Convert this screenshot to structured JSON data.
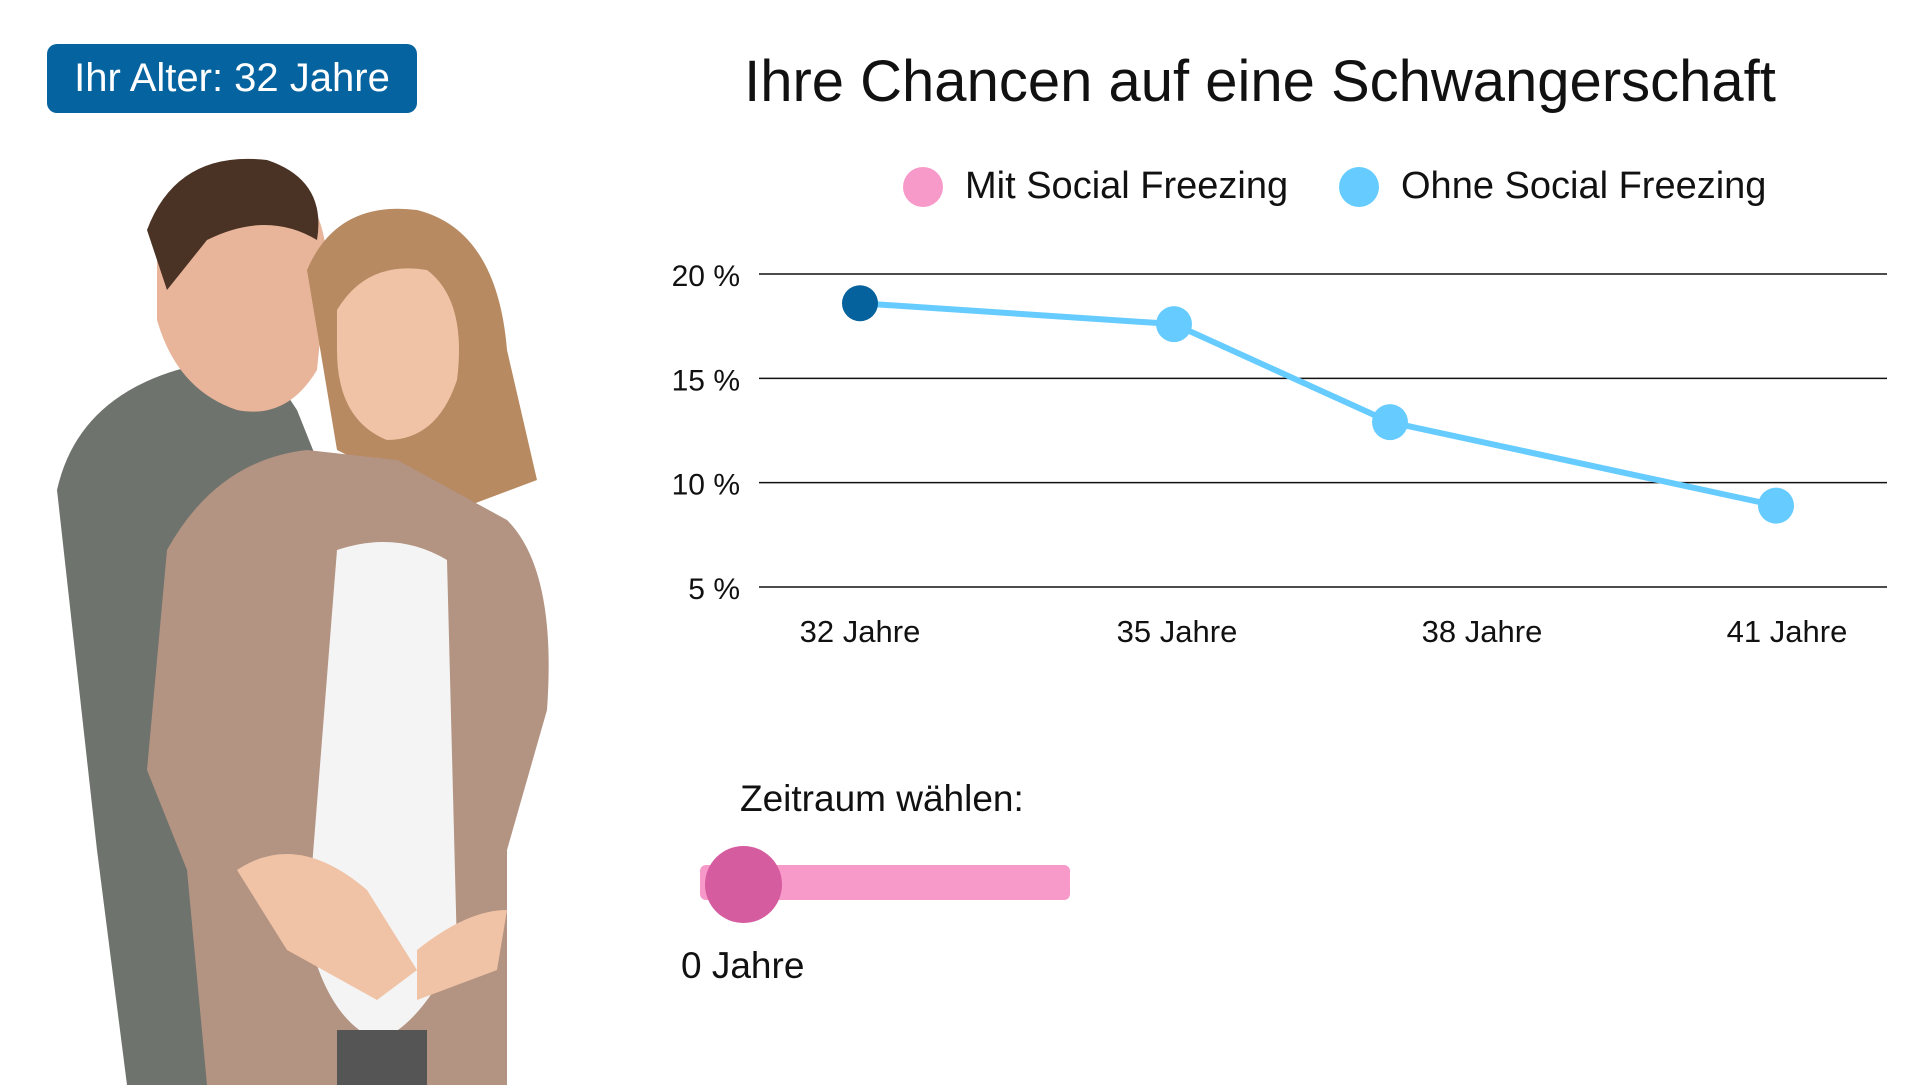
{
  "age_badge": "Ihr Alter: 32 Jahre",
  "title": "Ihre Chancen auf eine Schwangerschaft",
  "slider": {
    "label": "Zeitraum wählen:",
    "value_label": "0 Jahre",
    "value": 0
  },
  "colors": {
    "brand": "#0564a0",
    "mit": "#f799c9",
    "ohne": "#66ccff",
    "current": "#05629c",
    "knob": "#d65ca0"
  },
  "chart_data": {
    "type": "line",
    "title": "Ihre Chancen auf eine Schwangerschaft",
    "legend": [
      {
        "name": "Mit Social Freezing",
        "color": "#f799c9"
      },
      {
        "name": "Ohne Social Freezing",
        "color": "#66ccff"
      }
    ],
    "legend_position": "top",
    "categories": [
      "32 Jahre",
      "35 Jahre",
      "38 Jahre",
      "41 Jahre"
    ],
    "yticks": [
      "20 %",
      "15 %",
      "10 %",
      "5 %"
    ],
    "ytick_values": [
      20,
      15,
      10,
      5
    ],
    "ylim": [
      5,
      20
    ],
    "grid": true,
    "series": [
      {
        "name": "Ohne Social Freezing",
        "values": [
          18.6,
          17.6,
          12.9,
          8.9
        ],
        "color": "#66ccff",
        "highlight_first_color": "#05629c"
      }
    ]
  }
}
